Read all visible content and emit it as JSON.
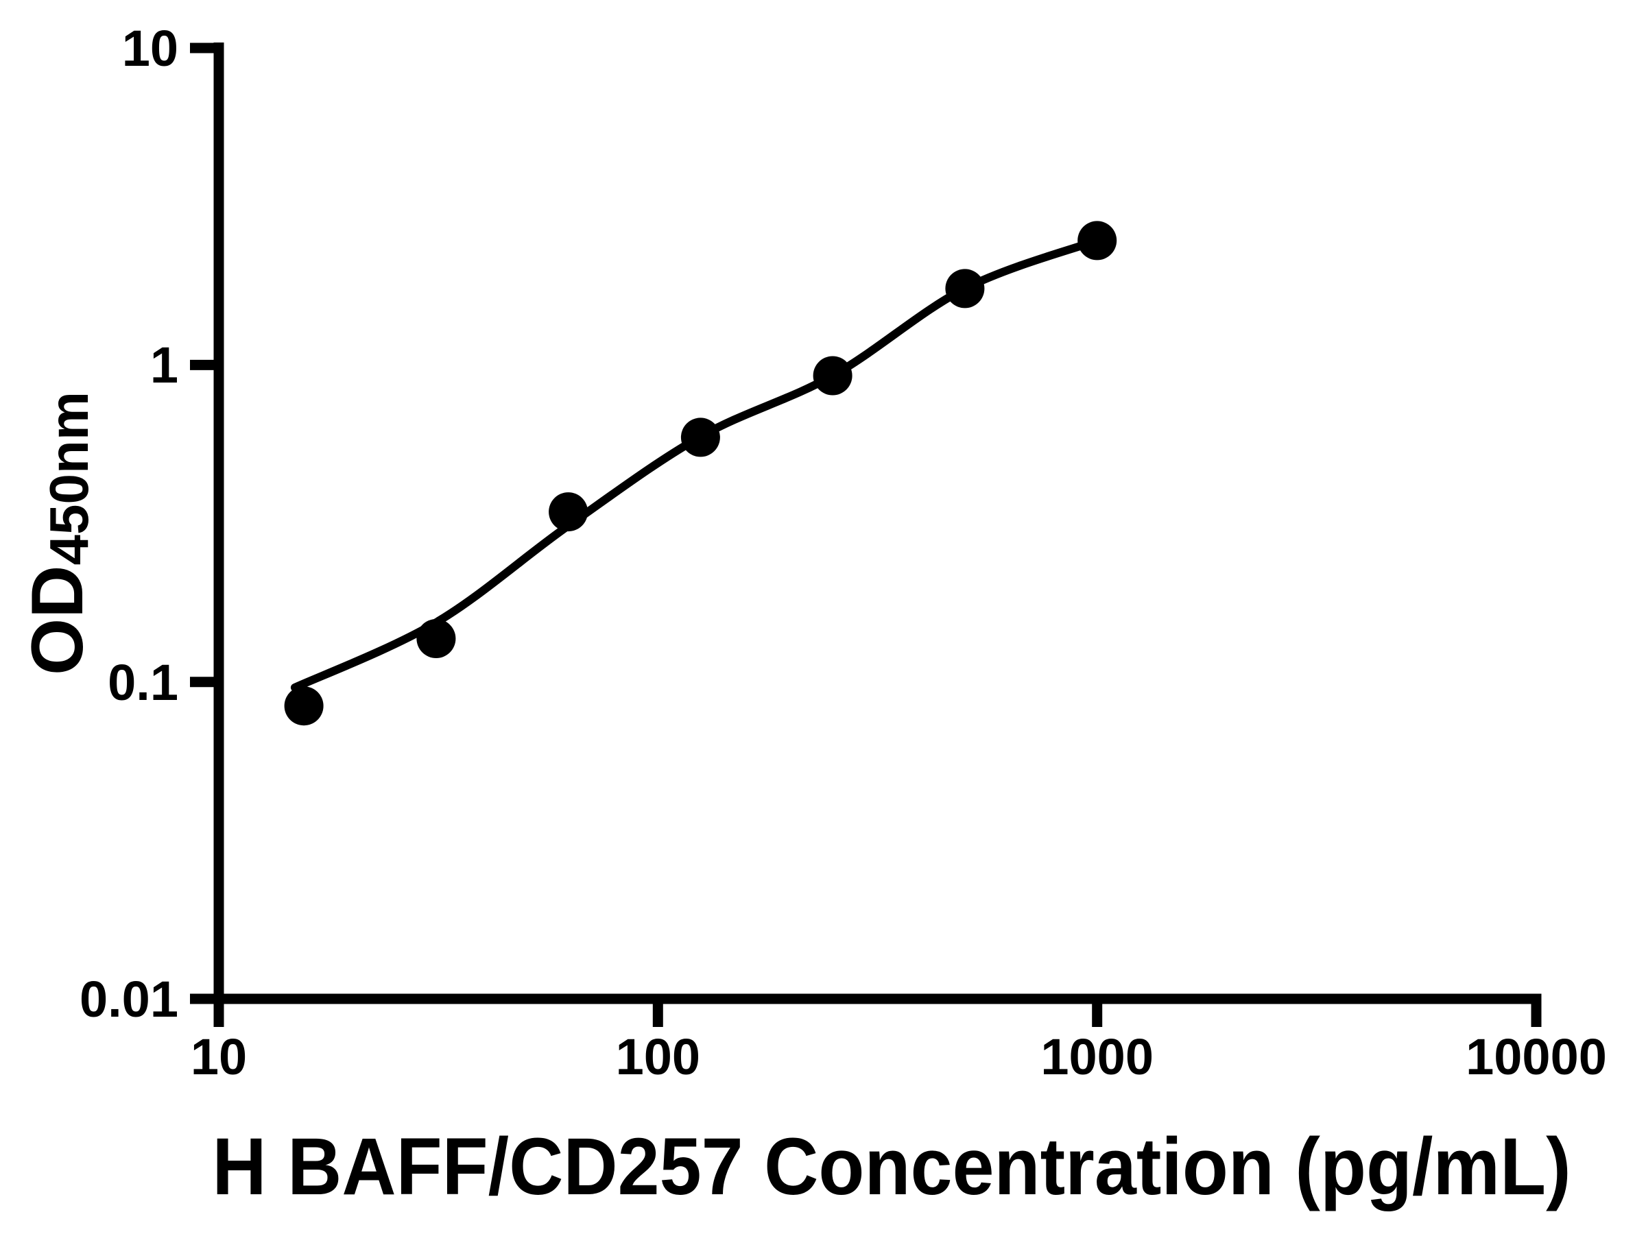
{
  "figure": {
    "background_color": "#ffffff",
    "foreground_color": "#000000"
  },
  "chart_data": {
    "type": "scatter",
    "subtype": "log-log standard curve with fitted line",
    "title": "",
    "xlabel": "H BAFF/CD257 Concentration (pg/mL)",
    "ylabel_main": "OD",
    "ylabel_subscript": "450nm",
    "x_scale": "log10",
    "y_scale": "log10",
    "xlim": [
      10,
      10000
    ],
    "ylim": [
      0.01,
      10
    ],
    "grid": false,
    "legend": "none",
    "x_ticks": [
      10,
      100,
      1000,
      10000
    ],
    "x_tick_labels": [
      "10",
      "100",
      "1000",
      "10000"
    ],
    "y_ticks": [
      0.01,
      0.1,
      1,
      10
    ],
    "y_tick_labels": [
      "0.01",
      "0.1",
      "1",
      "10"
    ],
    "series": [
      {
        "name": "standard-points",
        "marker": "filled-circle",
        "x": [
          15.625,
          31.25,
          62.5,
          125,
          250,
          500,
          1000
        ],
        "y": [
          0.084,
          0.137,
          0.344,
          0.591,
          0.925,
          1.742,
          2.468
        ]
      }
    ],
    "fit_curve": {
      "name": "fitted-standard-curve",
      "x": [
        14.9,
        31.25,
        62.5,
        125,
        250,
        500,
        1000
      ],
      "y": [
        0.096,
        0.154,
        0.311,
        0.594,
        0.925,
        1.742,
        2.468
      ]
    }
  }
}
